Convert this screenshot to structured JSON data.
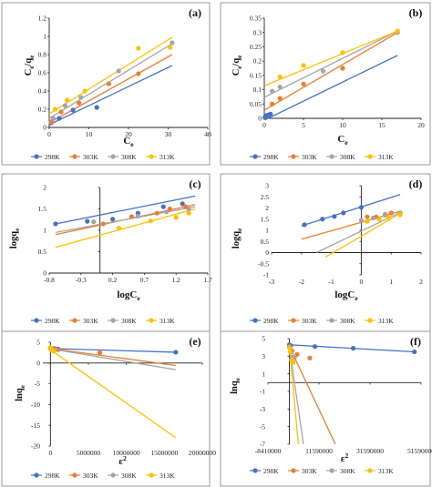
{
  "colors": {
    "298K": "#4472c4",
    "303K": "#ed7d31",
    "308K": "#a5a5a5",
    "313K": "#ffc000"
  },
  "legend": [
    "298K",
    "303K",
    "308K",
    "313K"
  ],
  "chart_data": [
    {
      "id": "a",
      "type": "scatter",
      "panel_label": "(a)",
      "xlabel_main": "C",
      "xlabel_sub": "e",
      "ylabel_parts": [
        "C",
        "e",
        "/q",
        "e"
      ],
      "xlim": [
        0,
        40
      ],
      "ylim": [
        0,
        1.2
      ],
      "xticks": [
        0,
        10,
        20,
        30,
        40
      ],
      "xtick_labels": [
        "0",
        "10",
        "20",
        "30",
        "40"
      ],
      "yticks": [
        0,
        0.2,
        0.4,
        0.6,
        0.8,
        1,
        1.2
      ],
      "ytick_labels": [
        "0",
        "0.2",
        "0.4",
        "0.6",
        "0.8",
        "1",
        "1.2"
      ],
      "series": [
        {
          "name": "298K",
          "points": [
            [
              0.5,
              0.05
            ],
            [
              2.5,
              0.1
            ],
            [
              6,
              0.19
            ],
            [
              12,
              0.22
            ]
          ],
          "fit": [
            [
              0,
              0.03
            ],
            [
              31,
              0.68
            ]
          ]
        },
        {
          "name": "303K",
          "points": [
            [
              0.5,
              0.06
            ],
            [
              3,
              0.17
            ],
            [
              7.5,
              0.27
            ],
            [
              15,
              0.48
            ],
            [
              22.5,
              0.59
            ]
          ],
          "fit": [
            [
              0,
              0.05
            ],
            [
              31,
              0.8
            ]
          ]
        },
        {
          "name": "308K",
          "points": [
            [
              1,
              0.1
            ],
            [
              4,
              0.24
            ],
            [
              8,
              0.33
            ],
            [
              17.5,
              0.62
            ],
            [
              31,
              0.93
            ]
          ],
          "fit": [
            [
              0,
              0.1
            ],
            [
              31,
              0.92
            ]
          ]
        },
        {
          "name": "313K",
          "points": [
            [
              1.5,
              0.2
            ],
            [
              4.5,
              0.3
            ],
            [
              9,
              0.4
            ],
            [
              22.5,
              0.87
            ],
            [
              30.5,
              0.88
            ]
          ],
          "fit": [
            [
              0,
              0.15
            ],
            [
              31,
              0.99
            ]
          ]
        }
      ]
    },
    {
      "id": "b",
      "type": "scatter",
      "panel_label": "(b)",
      "xlabel_main": "C",
      "xlabel_sub": "e",
      "ylabel_parts": [
        "C",
        "e",
        "/q",
        "e"
      ],
      "xlim": [
        0,
        20
      ],
      "ylim": [
        0,
        0.35
      ],
      "xticks": [
        0,
        5,
        10,
        15,
        20
      ],
      "xtick_labels": [
        "0",
        "5",
        "10",
        "15",
        "20"
      ],
      "yticks": [
        0,
        0.05,
        0.1,
        0.15,
        0.2,
        0.25,
        0.3,
        0.35
      ],
      "ytick_labels": [
        "0",
        "0.05",
        "0.1",
        "0.15",
        "0.2",
        "0.25",
        "0.3",
        "0.35"
      ],
      "series": [
        {
          "name": "298K",
          "points": [
            [
              0.1,
              0.005
            ],
            [
              0.3,
              0.01
            ],
            [
              0.5,
              0.012
            ],
            [
              0.8,
              0.015
            ]
          ],
          "fit": [
            [
              0.1,
              -0.005
            ],
            [
              17,
              0.22
            ]
          ]
        },
        {
          "name": "303K",
          "points": [
            [
              1.0,
              0.05
            ],
            [
              2.0,
              0.07
            ],
            [
              5.0,
              0.12
            ],
            [
              10.0,
              0.175
            ],
            [
              17.0,
              0.3
            ]
          ],
          "fit": [
            [
              0.1,
              0.03
            ],
            [
              17,
              0.3
            ]
          ]
        },
        {
          "name": "308K",
          "points": [
            [
              1.0,
              0.095
            ],
            [
              2.0,
              0.11
            ],
            [
              7.5,
              0.165
            ],
            [
              17.0,
              0.3
            ]
          ],
          "fit": [
            [
              0.1,
              0.075
            ],
            [
              17,
              0.305
            ]
          ]
        },
        {
          "name": "313K",
          "points": [
            [
              2.0,
              0.145
            ],
            [
              5.0,
              0.185
            ],
            [
              10.0,
              0.23
            ],
            [
              17.0,
              0.305
            ]
          ],
          "fit": [
            [
              0.1,
              0.115
            ],
            [
              17,
              0.305
            ]
          ]
        }
      ]
    },
    {
      "id": "c",
      "type": "scatter",
      "panel_label": "(c)",
      "xlabel_main": "logC",
      "xlabel_sub": "e",
      "ylabel_parts": [
        "logq",
        "e",
        "",
        ""
      ],
      "xlim": [
        -0.8,
        1.7
      ],
      "ylim": [
        0,
        2
      ],
      "xticks": [
        -0.8,
        -0.3,
        0.2,
        0.7,
        1.2,
        1.7
      ],
      "xtick_labels": [
        "-0.8",
        "-0.3",
        "0.2",
        "0.7",
        "1.2",
        "1.7"
      ],
      "yticks": [
        0,
        0.5,
        1,
        1.5,
        2
      ],
      "ytick_labels": [
        "0",
        "0.5",
        "1",
        "1.5",
        "2"
      ],
      "series": [
        {
          "name": "298K",
          "points": [
            [
              -0.7,
              1.15
            ],
            [
              -0.2,
              1.21
            ],
            [
              0.2,
              1.26
            ],
            [
              0.6,
              1.4
            ],
            [
              1.0,
              1.55
            ],
            [
              1.3,
              1.62
            ]
          ],
          "fit": [
            [
              -0.7,
              1.15
            ],
            [
              1.5,
              1.8
            ]
          ]
        },
        {
          "name": "303K",
          "points": [
            [
              0.05,
              1.15
            ],
            [
              0.5,
              1.32
            ],
            [
              0.9,
              1.4
            ],
            [
              1.1,
              1.5
            ],
            [
              1.35,
              1.55
            ]
          ],
          "fit": [
            [
              -0.7,
              0.9
            ],
            [
              1.5,
              1.6
            ]
          ]
        },
        {
          "name": "308K",
          "points": [
            [
              -0.1,
              1.2
            ],
            [
              0.6,
              1.33
            ],
            [
              1.05,
              1.43
            ],
            [
              1.4,
              1.5
            ]
          ],
          "fit": [
            [
              -0.7,
              0.95
            ],
            [
              1.5,
              1.55
            ]
          ]
        },
        {
          "name": "313K",
          "points": [
            [
              0.3,
              1.05
            ],
            [
              0.8,
              1.22
            ],
            [
              1.2,
              1.3
            ],
            [
              1.4,
              1.4
            ]
          ],
          "fit": [
            [
              -0.7,
              0.6
            ],
            [
              1.5,
              1.5
            ]
          ]
        }
      ]
    },
    {
      "id": "d",
      "type": "scatter",
      "panel_label": "(d)",
      "xlabel_main": "logC",
      "xlabel_sub": "e",
      "ylabel_parts": [
        "logq",
        "e",
        "",
        ""
      ],
      "xlim": [
        -3,
        2
      ],
      "ylim": [
        -1,
        3
      ],
      "xticks": [
        -3,
        -2,
        -1,
        0,
        1,
        2
      ],
      "xtick_labels": [
        "-3",
        "-2",
        "-1",
        "0",
        "1",
        "2"
      ],
      "yticks": [
        -1,
        -0.5,
        0,
        0.5,
        1,
        1.5,
        2,
        2.5,
        3
      ],
      "ytick_labels": [
        "-1",
        "-0.5",
        "0",
        "0.5",
        "1",
        "1.5",
        "2",
        "2.5",
        "3"
      ],
      "series": [
        {
          "name": "298K",
          "points": [
            [
              -1.9,
              1.25
            ],
            [
              -1.3,
              1.5
            ],
            [
              -0.9,
              1.62
            ],
            [
              -0.6,
              1.78
            ],
            [
              0,
              2.03
            ]
          ],
          "fit": [
            [
              -2,
              1.2
            ],
            [
              1.3,
              2.6
            ]
          ]
        },
        {
          "name": "303K",
          "points": [
            [
              0.2,
              1.6
            ],
            [
              0.5,
              1.6
            ],
            [
              0.8,
              1.72
            ],
            [
              1.0,
              1.78
            ],
            [
              1.3,
              1.78
            ]
          ],
          "fit": [
            [
              -2,
              0.6
            ],
            [
              1.3,
              1.85
            ]
          ]
        },
        {
          "name": "308K",
          "points": [
            [
              0,
              1.45
            ],
            [
              0.4,
              1.55
            ],
            [
              0.8,
              1.68
            ],
            [
              1.3,
              1.75
            ]
          ],
          "fit": [
            [
              -1.5,
              0
            ],
            [
              1.3,
              1.8
            ]
          ]
        },
        {
          "name": "313K",
          "points": [
            [
              0.2,
              1.4
            ],
            [
              0.6,
              1.5
            ],
            [
              0.9,
              1.58
            ],
            [
              1.3,
              1.7
            ]
          ],
          "fit": [
            [
              -1.2,
              -0.2
            ],
            [
              1.3,
              1.75
            ]
          ]
        }
      ]
    },
    {
      "id": "e",
      "type": "scatter",
      "panel_label": "(e)",
      "xlabel_main": "ε",
      "xlabel_sup": "2",
      "ylabel_parts": [
        "lnq",
        "e",
        "",
        ""
      ],
      "xlim": [
        -1000000,
        20000000
      ],
      "ylim": [
        -20,
        5
      ],
      "xticks": [
        0,
        5000000,
        10000000,
        15000000,
        20000000
      ],
      "xtick_labels": [
        "0",
        "5000000",
        "10000000",
        "15000000",
        "20000000"
      ],
      "yticks": [
        -20,
        -15,
        -10,
        -5,
        0,
        5
      ],
      "ytick_labels": [
        "-20",
        "-15",
        "-10",
        "-5",
        "0",
        "5"
      ],
      "series": [
        {
          "name": "298K",
          "points": [
            [
              0,
              3.6
            ],
            [
              500000,
              3.5
            ],
            [
              1000000,
              3.4
            ],
            [
              16500000,
              2.6
            ]
          ],
          "fit": [
            [
              0,
              3.5
            ],
            [
              16500000,
              2.6
            ]
          ]
        },
        {
          "name": "303K",
          "points": [
            [
              0,
              3.6
            ],
            [
              200000,
              3.4
            ],
            [
              500000,
              3.3
            ],
            [
              1000000,
              3.2
            ],
            [
              6500000,
              2.5
            ]
          ],
          "fit": [
            [
              0,
              3.5
            ],
            [
              16500000,
              -0.6
            ]
          ]
        },
        {
          "name": "308K",
          "points": [
            [
              0,
              3.6
            ],
            [
              100000,
              3.4
            ],
            [
              300000,
              3.3
            ],
            [
              600000,
              3.2
            ]
          ],
          "fit": [
            [
              0,
              3.4
            ],
            [
              16500000,
              -1.6
            ]
          ]
        },
        {
          "name": "313K",
          "points": [
            [
              0,
              3.8
            ],
            [
              100000,
              3.2
            ],
            [
              200000,
              3.1
            ],
            [
              400000,
              2.9
            ]
          ],
          "fit": [
            [
              0,
              3.2
            ],
            [
              16500000,
              -18
            ]
          ]
        }
      ]
    },
    {
      "id": "f",
      "type": "scatter",
      "panel_label": "(f)",
      "xlabel_main": "ε",
      "xlabel_sup": "2",
      "ylabel_parts": [
        "lnq",
        "e",
        "",
        ""
      ],
      "xlim": [
        -8410000,
        51590000
      ],
      "ylim": [
        -7,
        5
      ],
      "xticks": [
        -8410000,
        11590000,
        31590000,
        51590000
      ],
      "xtick_labels": [
        "-8410000",
        "11590000",
        "31590000",
        "51590000"
      ],
      "yticks": [
        -7,
        -5,
        -3,
        -1,
        1,
        3,
        5
      ],
      "ytick_labels": [
        "-7",
        "-5",
        "-3",
        "-1",
        "1",
        "3",
        "5"
      ],
      "series": [
        {
          "name": "298K",
          "points": [
            [
              0,
              4.3
            ],
            [
              500000,
              4.2
            ],
            [
              10000000,
              4.1
            ],
            [
              25000000,
              3.9
            ],
            [
              49000000,
              3.5
            ]
          ],
          "fit": [
            [
              0,
              4.3
            ],
            [
              49000000,
              3.5
            ]
          ]
        },
        {
          "name": "303K",
          "points": [
            [
              0,
              4.1
            ],
            [
              1000000,
              3.6
            ],
            [
              3000000,
              3.2
            ],
            [
              8000000,
              2.8
            ]
          ],
          "fit": [
            [
              0,
              4.1
            ],
            [
              18000000,
              -7
            ]
          ]
        },
        {
          "name": "308K",
          "points": [
            [
              0,
              4.0
            ],
            [
              500000,
              3.5
            ],
            [
              1000000,
              2.9
            ],
            [
              2000000,
              2.8
            ]
          ],
          "fit": [
            [
              0,
              4.0
            ],
            [
              5500000,
              -7
            ]
          ]
        },
        {
          "name": "313K",
          "points": [
            [
              0,
              4.0
            ],
            [
              300000,
              3.5
            ],
            [
              800000,
              2.6
            ],
            [
              1500000,
              2.3
            ]
          ],
          "fit": [
            [
              0,
              4.0
            ],
            [
              3500000,
              -7
            ]
          ]
        }
      ]
    }
  ]
}
